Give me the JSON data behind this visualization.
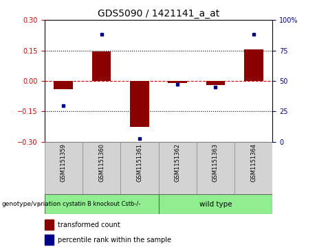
{
  "title": "GDS5090 / 1421141_a_at",
  "samples": [
    "GSM1151359",
    "GSM1151360",
    "GSM1151361",
    "GSM1151362",
    "GSM1151363",
    "GSM1151364"
  ],
  "transformed_count": [
    -0.04,
    0.145,
    -0.225,
    -0.01,
    -0.02,
    0.155
  ],
  "percentile_rank": [
    30,
    88,
    3,
    47,
    45,
    88
  ],
  "group1_label": "cystatin B knockout Cstb-/-",
  "group2_label": "wild type",
  "group_color": "#90EE90",
  "sample_box_color": "#d3d3d3",
  "ylim_left": [
    -0.3,
    0.3
  ],
  "ylim_right": [
    0,
    100
  ],
  "yticks_left": [
    -0.3,
    -0.15,
    0,
    0.15,
    0.3
  ],
  "yticks_right": [
    0,
    25,
    50,
    75,
    100
  ],
  "bar_color": "#8B0000",
  "dot_color": "#00008B",
  "hline_color": "#CC0000",
  "dotted_color": "black",
  "left_tick_color": "#CC0000",
  "right_tick_color": "#00008B",
  "legend_bar_label": "transformed count",
  "legend_dot_label": "percentile rank within the sample",
  "genotype_label": "genotype/variation",
  "bar_width": 0.5,
  "title_fontsize": 10,
  "tick_fontsize": 7,
  "label_fontsize": 7,
  "sample_fontsize": 6
}
